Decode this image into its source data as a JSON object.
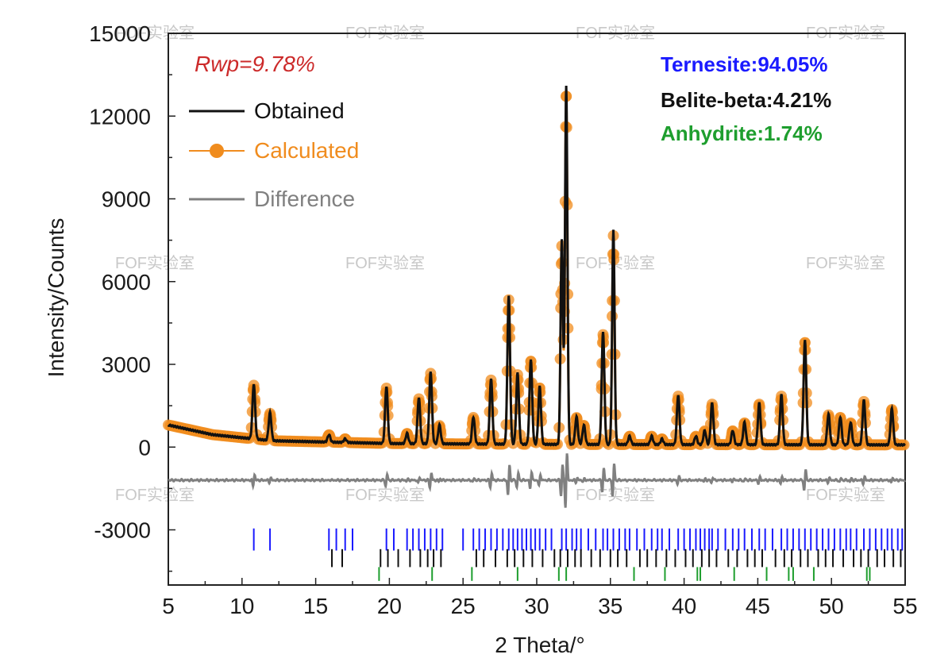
{
  "chart_data": {
    "type": "line",
    "xlabel": "2 Theta/°",
    "ylabel": "Intensity/Counts",
    "xlim": [
      5,
      55
    ],
    "ylim": [
      -5000,
      15000
    ],
    "x_ticks": [
      5,
      10,
      15,
      20,
      25,
      30,
      35,
      40,
      45,
      50,
      55
    ],
    "y_ticks": [
      15000,
      12000,
      9000,
      6000,
      3000,
      0,
      -3000
    ],
    "annotation": "Rwp=9.78%",
    "phases": [
      {
        "label": "Ternesite:94.05%",
        "color": "#1a1aff"
      },
      {
        "label": "Belite-beta:4.21%",
        "color": "#111111"
      },
      {
        "label": "Anhydrite:1.74%",
        "color": "#1e9e2e"
      }
    ],
    "legend": {
      "placement": "top-left",
      "entries": [
        {
          "name": "Obtained",
          "color": "#111111",
          "marker": "line"
        },
        {
          "name": "Calculated",
          "color": "#f08c1e",
          "marker": "circle"
        },
        {
          "name": "Difference",
          "color": "#808080",
          "marker": "line"
        }
      ]
    },
    "background": [
      [
        5,
        800
      ],
      [
        8,
        450
      ],
      [
        12,
        230
      ],
      [
        20,
        130
      ],
      [
        30,
        100
      ],
      [
        40,
        90
      ],
      [
        55,
        80
      ]
    ],
    "peaks": [
      {
        "x": 10.8,
        "y": 2300
      },
      {
        "x": 11.9,
        "y": 1250
      },
      {
        "x": 15.9,
        "y": 450
      },
      {
        "x": 17.0,
        "y": 300
      },
      {
        "x": 19.8,
        "y": 2200
      },
      {
        "x": 21.2,
        "y": 500
      },
      {
        "x": 22.0,
        "y": 1800
      },
      {
        "x": 22.8,
        "y": 2750
      },
      {
        "x": 23.4,
        "y": 800
      },
      {
        "x": 25.7,
        "y": 1100
      },
      {
        "x": 26.9,
        "y": 2500
      },
      {
        "x": 28.1,
        "y": 5500
      },
      {
        "x": 28.7,
        "y": 2700
      },
      {
        "x": 29.6,
        "y": 3200
      },
      {
        "x": 30.2,
        "y": 2200
      },
      {
        "x": 31.7,
        "y": 7500
      },
      {
        "x": 32.0,
        "y": 13100
      },
      {
        "x": 32.7,
        "y": 1100
      },
      {
        "x": 33.2,
        "y": 800
      },
      {
        "x": 34.5,
        "y": 4200
      },
      {
        "x": 35.2,
        "y": 7900
      },
      {
        "x": 36.3,
        "y": 400
      },
      {
        "x": 37.8,
        "y": 400
      },
      {
        "x": 38.5,
        "y": 300
      },
      {
        "x": 39.6,
        "y": 1900
      },
      {
        "x": 40.8,
        "y": 400
      },
      {
        "x": 41.4,
        "y": 600
      },
      {
        "x": 41.9,
        "y": 1600
      },
      {
        "x": 43.3,
        "y": 600
      },
      {
        "x": 44.1,
        "y": 900
      },
      {
        "x": 45.1,
        "y": 1600
      },
      {
        "x": 46.6,
        "y": 1900
      },
      {
        "x": 48.2,
        "y": 3900
      },
      {
        "x": 49.8,
        "y": 1200
      },
      {
        "x": 50.6,
        "y": 1100
      },
      {
        "x": 51.3,
        "y": 900
      },
      {
        "x": 52.2,
        "y": 1700
      },
      {
        "x": 54.1,
        "y": 1400
      }
    ],
    "difference_offset": -1200,
    "reflection_rows": [
      {
        "phase": "Ternesite",
        "color": "#1a1aff",
        "y_top": -2950,
        "y_bottom": -3750,
        "positions": [
          10.8,
          11.9,
          15.9,
          16.4,
          17.0,
          17.5,
          19.8,
          20.3,
          21.2,
          21.6,
          22.0,
          22.4,
          22.8,
          23.2,
          23.6,
          25.0,
          25.7,
          26.1,
          26.5,
          26.9,
          27.3,
          27.7,
          28.1,
          28.4,
          28.7,
          29.0,
          29.3,
          29.6,
          29.9,
          30.2,
          30.6,
          31.0,
          31.7,
          32.0,
          32.4,
          32.7,
          33.0,
          33.5,
          34.0,
          34.5,
          34.8,
          35.2,
          35.6,
          36.0,
          36.3,
          36.8,
          37.3,
          37.8,
          38.2,
          38.5,
          39.0,
          39.6,
          40.0,
          40.4,
          40.8,
          41.1,
          41.4,
          41.7,
          41.9,
          42.3,
          42.8,
          43.3,
          43.7,
          44.1,
          44.6,
          45.1,
          45.5,
          46.0,
          46.6,
          47.0,
          47.4,
          47.8,
          48.2,
          48.6,
          49.0,
          49.4,
          49.8,
          50.2,
          50.6,
          51.0,
          51.3,
          51.7,
          52.2,
          52.6,
          53.0,
          53.4,
          53.8,
          54.1,
          54.5,
          54.8
        ]
      },
      {
        "phase": "Belite-beta",
        "color": "#111111",
        "y_top": -3700,
        "y_bottom": -4350,
        "positions": [
          16.1,
          16.8,
          19.4,
          19.9,
          20.6,
          21.4,
          22.1,
          22.6,
          23.0,
          23.5,
          25.9,
          26.4,
          27.2,
          28.0,
          28.5,
          29.1,
          29.7,
          30.4,
          31.2,
          31.6,
          32.1,
          32.6,
          33.0,
          33.7,
          34.3,
          35.0,
          35.5,
          36.1,
          37.0,
          37.5,
          38.1,
          38.8,
          39.4,
          40.1,
          40.6,
          41.2,
          41.7,
          42.2,
          43.0,
          43.6,
          44.3,
          44.8,
          45.3,
          46.2,
          46.8,
          47.3,
          47.9,
          48.4,
          49.1,
          49.6,
          50.1,
          50.8,
          51.5,
          52.0,
          52.5,
          53.1,
          53.6,
          54.2,
          54.7
        ]
      },
      {
        "phase": "Anhydrite",
        "color": "#1e9e2e",
        "y_top": -4350,
        "y_bottom": -4850,
        "positions": [
          19.3,
          22.9,
          25.6,
          28.7,
          31.5,
          32.0,
          36.6,
          38.7,
          40.9,
          41.1,
          43.4,
          45.6,
          47.1,
          47.4,
          48.8,
          52.4,
          52.6
        ]
      }
    ]
  },
  "watermark": "FOF实验室"
}
